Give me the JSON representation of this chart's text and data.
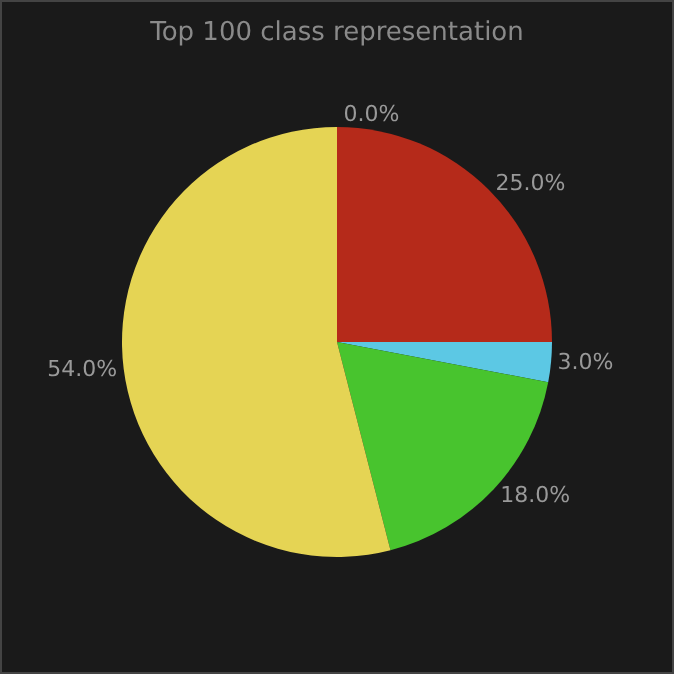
{
  "chart_data": {
    "type": "pie",
    "title": "Top 100 class representation",
    "categories": [
      null,
      null,
      null,
      null,
      null
    ],
    "values": [
      0,
      25,
      3,
      18,
      54
    ],
    "colors": [
      "#7a7a7a",
      "#b52a1a",
      "#5cc8e4",
      "#48c42e",
      "#e5d454"
    ],
    "value_labels": [
      "0.0%",
      "25.0%",
      "3.0%",
      "18.0%",
      "54.0%"
    ],
    "legend": false
  }
}
